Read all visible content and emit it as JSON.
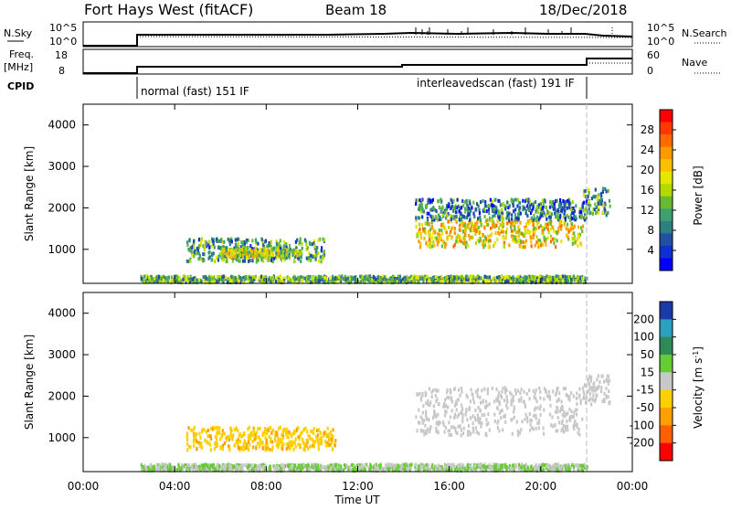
{
  "header": {
    "station": "Fort Hays West (fitACF)",
    "beam": "Beam 18",
    "date": "18/Dec/2018"
  },
  "panels": {
    "nsky": {
      "left_label": "N.Sky",
      "left_ticks": [
        "10^5",
        "10^0"
      ],
      "right_label": "N.Search",
      "right_ticks": [
        "10^5",
        "10^0"
      ]
    },
    "freq": {
      "left_label_1": "Freq.",
      "left_label_2": "[MHz]",
      "left_ticks": [
        "18",
        "8"
      ],
      "right_label": "Nave",
      "right_ticks": [
        "60",
        "0"
      ]
    },
    "cpid": {
      "label": "CPID",
      "modes": [
        "normal (fast) 151 IF",
        "interleavedscan (fast) 191 IF"
      ]
    }
  },
  "colorbars": {
    "power": {
      "title": "Power [dB]",
      "ticks": [
        "28",
        "24",
        "20",
        "16",
        "12",
        "8",
        "4"
      ],
      "colors": [
        "#ff0000",
        "#ff3a00",
        "#ff6a00",
        "#ff9900",
        "#ffbf00",
        "#e6e600",
        "#b5d800",
        "#66bb33",
        "#3f9f6f",
        "#2e7f7f",
        "#2050a0",
        "#1030d0",
        "#0000ff"
      ]
    },
    "velocity": {
      "title": "Velocity [m s",
      "title_sup": "-1",
      "title_end": "]",
      "ticks": [
        "200",
        "100",
        "50",
        "15",
        "-15",
        "-50",
        "-100",
        "-200"
      ],
      "colors": [
        "#1a3aa8",
        "#2aa0c0",
        "#2e8b57",
        "#66cc33",
        "#c8c8c8",
        "#ffd000",
        "#ffa000",
        "#ff6000",
        "#ff0000"
      ]
    }
  },
  "axes": {
    "y_label": "Slant Range [km]",
    "y_ticks": [
      "4000",
      "3000",
      "2000",
      "1000"
    ],
    "x_ticks": [
      "00:00",
      "04:00",
      "08:00",
      "12:00",
      "16:00",
      "20:00",
      "00:00"
    ],
    "x_label": "Time UT"
  },
  "chart_data": [
    {
      "type": "heatmap",
      "variable": "power",
      "ylabel": "Slant Range [km]",
      "xlabel": "Time UT",
      "x_range_hours": [
        0,
        24
      ],
      "y_range_km": [
        180,
        4500
      ],
      "regions": [
        {
          "t": [
            2.5,
            22.0
          ],
          "range": [
            200,
            350
          ],
          "value": 12
        },
        {
          "t": [
            4.5,
            10.5
          ],
          "range": [
            700,
            1250
          ],
          "value": 10
        },
        {
          "t": [
            6.0,
            9.5
          ],
          "range": [
            800,
            1000
          ],
          "value": 16
        },
        {
          "t": [
            14.5,
            21.8
          ],
          "range": [
            1050,
            1700
          ],
          "value": 20
        },
        {
          "t": [
            14.5,
            22.0
          ],
          "range": [
            1700,
            2200
          ],
          "value": 8
        },
        {
          "t": [
            21.8,
            23.0
          ],
          "range": [
            1800,
            2500
          ],
          "value": 12
        }
      ]
    },
    {
      "type": "heatmap",
      "variable": "velocity",
      "ylabel": "Slant Range [km]",
      "xlabel": "Time UT",
      "x_range_hours": [
        0,
        24
      ],
      "y_range_km": [
        180,
        4500
      ],
      "regions": [
        {
          "t": [
            2.5,
            22.0
          ],
          "range": [
            200,
            350
          ],
          "value": 15
        },
        {
          "t": [
            4.5,
            11.0
          ],
          "range": [
            700,
            1250
          ],
          "value": -40
        },
        {
          "t": [
            14.5,
            21.8
          ],
          "range": [
            1050,
            2200
          ],
          "value": 0
        },
        {
          "t": [
            21.8,
            23.0
          ],
          "range": [
            1800,
            2500
          ],
          "value": 0
        }
      ]
    }
  ]
}
